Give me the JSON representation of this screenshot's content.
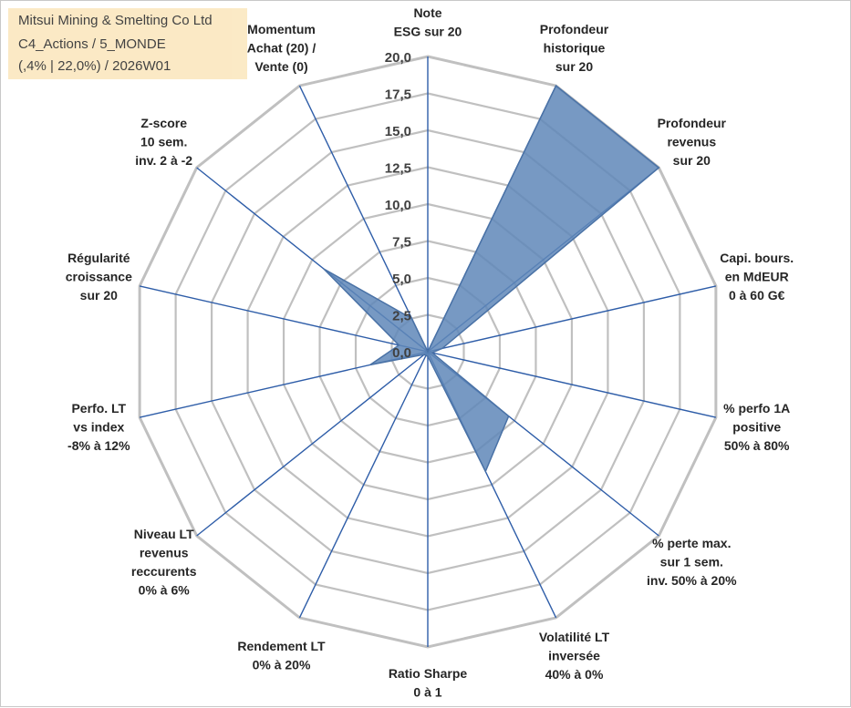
{
  "title_box": {
    "line1": "Mitsui Mining & Smelting Co Ltd",
    "line2": "C4_Actions / 5_MONDE",
    "line3": "(,4% | 22,0%) / 2026W01"
  },
  "colors": {
    "grid": "#c0c0c0",
    "spoke": "#2e5da8",
    "fill": "#5f87b8",
    "stroke": "#4a72a6",
    "title_bg": "#fbe8c1"
  },
  "chart_data": {
    "type": "radar",
    "title": "Mitsui Mining & Smelting Co Ltd",
    "rmin": 0,
    "rmax": 20,
    "tick_step": 2.5,
    "tick_labels": [
      "0,0",
      "2,5",
      "5,0",
      "7,5",
      "10,0",
      "12,5",
      "15,0",
      "17,5",
      "20,0"
    ],
    "axes": [
      {
        "lines": [
          "Note",
          "ESG sur 20"
        ],
        "value": 0.0
      },
      {
        "lines": [
          "Profondeur",
          "historique",
          "sur 20"
        ],
        "value": 20.0
      },
      {
        "lines": [
          "Profondeur",
          "revenus",
          "sur 20"
        ],
        "value": 20.0
      },
      {
        "lines": [
          "Capi. bours.",
          "en MdEUR",
          "0 à 60 G€"
        ],
        "value": 1.0
      },
      {
        "lines": [
          "% perfo 1A",
          "positive",
          "50% à 80%"
        ],
        "value": 0.3
      },
      {
        "lines": [
          "% perte max.",
          "sur 1 sem.",
          "inv. 50% à 20%"
        ],
        "value": 7.0
      },
      {
        "lines": [
          "Volatilité LT",
          "inversée",
          "40% à 0%"
        ],
        "value": 9.0
      },
      {
        "lines": [
          "Ratio Sharpe",
          "0 à 1"
        ],
        "value": 0.3
      },
      {
        "lines": [
          "Rendement LT",
          "0% à 20%"
        ],
        "value": 0.3
      },
      {
        "lines": [
          "Niveau LT",
          "revenus",
          "reccurents",
          "0% à 6%"
        ],
        "value": 0.3
      },
      {
        "lines": [
          "Perfo. LT",
          "vs index",
          "-8% à 12%"
        ],
        "value": 4.0
      },
      {
        "lines": [
          "Régularité",
          "croissance",
          "sur 20"
        ],
        "value": 2.0
      },
      {
        "lines": [
          "Z-score",
          "10 sem.",
          "inv. 2 à -2"
        ],
        "value": 9.0
      },
      {
        "lines": [
          "Momentum",
          "Achat (20) /",
          "Vente (0)"
        ],
        "value": 2.5
      }
    ]
  }
}
